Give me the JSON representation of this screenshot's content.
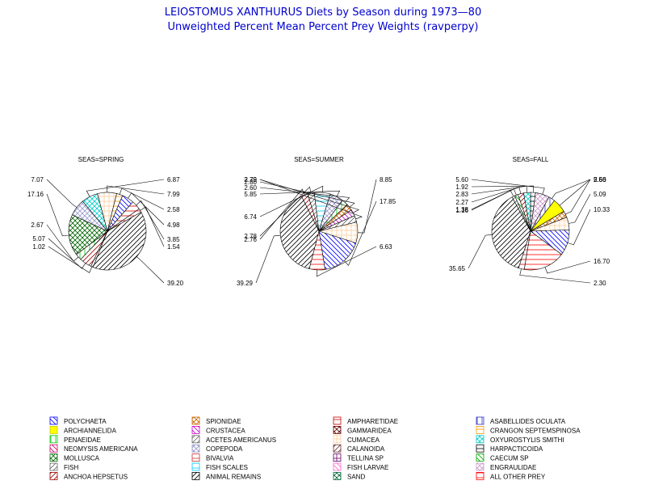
{
  "title": "LEIOSTOMUS XANTHURUS Diets by Season during 1973—80",
  "subtitle": "Unweighted Percent Mean Percent Prey  Weights (ravperpy)",
  "chart_data": [
    {
      "type": "pie",
      "title": "SEAS=SPRING",
      "slices": [
        {
          "category": "FISH",
          "value": 1.02
        },
        {
          "category": "ANCHOA HEPSETUS",
          "value": 5.07
        },
        {
          "category": "PENAEIDAE",
          "value": 2.67
        },
        {
          "category": "MOLLUSCA",
          "value": 17.16
        },
        {
          "category": "COPEPODA",
          "value": 7.07
        },
        {
          "category": "OXYUROSTYLIS SMITHI",
          "value": 6.87
        },
        {
          "category": "CUMACEA",
          "value": 7.99
        },
        {
          "category": "CRANGON SEPTEMSPINOSA",
          "value": 2.58
        },
        {
          "category": "POLYCHAETA",
          "value": 4.98
        },
        {
          "category": "AMPHARETIDAE",
          "value": 3.85
        },
        {
          "category": "ALL OTHER PREY",
          "value": 1.54
        },
        {
          "category": "ANIMAL REMAINS",
          "value": 39.2
        }
      ]
    },
    {
      "type": "pie",
      "title": "SEAS=SUMMER",
      "slices": [
        {
          "category": "ANIMAL REMAINS",
          "value": 39.29
        },
        {
          "category": "ANCHOA HEPSETUS",
          "value": 2.76
        },
        {
          "category": "FISH",
          "value": 2.78
        },
        {
          "category": "FISH SCALES",
          "value": 6.74
        },
        {
          "category": "COPEPODA",
          "value": 5.85
        },
        {
          "category": "PENAEIDAE",
          "value": 2.6
        },
        {
          "category": "SPIONIDAE",
          "value": 2.8
        },
        {
          "category": "CRUSTACEA",
          "value": 2.79
        },
        {
          "category": "ACETES AMERICANUS",
          "value": 2.79
        },
        {
          "category": "CUMACEA",
          "value": 8.85
        },
        {
          "category": "POLYCHAETA",
          "value": 17.85
        },
        {
          "category": "ALL OTHER PREY",
          "value": 6.63
        }
      ]
    },
    {
      "type": "pie",
      "title": "SEAS=FALL",
      "slices": [
        {
          "category": "ANIMAL REMAINS",
          "value": 35.65
        },
        {
          "category": "FISH",
          "value": 1.16
        },
        {
          "category": "CAECUM SP",
          "value": 1.38
        },
        {
          "category": "ANCHOA HEPSETUS",
          "value": 2.27
        },
        {
          "category": "OXYUROSTYLIS SMITHI",
          "value": 2.83
        },
        {
          "category": "HARPACTICOIDA",
          "value": 1.92
        },
        {
          "category": "ENGRAULIDAE",
          "value": 5.6
        },
        {
          "category": "ASABELLIDES OCULATA",
          "value": 2.56
        },
        {
          "category": "ARCHIANNELIDA",
          "value": 5.66
        },
        {
          "category": "SPIONIDAE",
          "value": 2.6
        },
        {
          "category": "CUMACEA",
          "value": 5.09
        },
        {
          "category": "POLYCHAETA",
          "value": 10.33
        },
        {
          "category": "ALL OTHER PREY",
          "value": 16.7
        },
        {
          "category": "AMPHARETIDAE",
          "value": 2.3
        }
      ]
    }
  ],
  "legend": [
    {
      "name": "POLYCHAETA",
      "color": "#0000ff",
      "pattern": "diag-rev"
    },
    {
      "name": "SPIONIDAE",
      "color": "#cc6600",
      "pattern": "cross-diag"
    },
    {
      "name": "AMPHARETIDAE",
      "color": "#cc0000",
      "pattern": "horiz"
    },
    {
      "name": "ASABELLIDES OCULATA",
      "color": "#3333cc",
      "pattern": "vert"
    },
    {
      "name": "ARCHIANNELIDA",
      "color": "#ffff00",
      "pattern": "solid"
    },
    {
      "name": "CRUSTACEA",
      "color": "#cc00cc",
      "pattern": "diag-rev"
    },
    {
      "name": "GAMMARIDEA",
      "color": "#660000",
      "pattern": "cross-diag"
    },
    {
      "name": "CRANGON SEPTEMSPINOSA",
      "color": "#ff9900",
      "pattern": "horiz"
    },
    {
      "name": "PENAEIDAE",
      "color": "#00cc00",
      "pattern": "vert"
    },
    {
      "name": "ACETES AMERICANUS",
      "color": "#666666",
      "pattern": "diag"
    },
    {
      "name": "CUMACEA",
      "color": "#ffcc99",
      "pattern": "grid"
    },
    {
      "name": "OXYUROSTYLIS SMITHI",
      "color": "#00cccc",
      "pattern": "cross-diag"
    },
    {
      "name": "NEOMYSIS AMERICANA",
      "color": "#cc0066",
      "pattern": "diag-rev"
    },
    {
      "name": "COPEPODA",
      "color": "#9999cc",
      "pattern": "cross-diag"
    },
    {
      "name": "CALANOIDA",
      "color": "#663333",
      "pattern": "diag"
    },
    {
      "name": "HARPACTICOIDA",
      "color": "#000000",
      "pattern": "horiz"
    },
    {
      "name": "MOLLUSCA",
      "color": "#006600",
      "pattern": "cross-diag"
    },
    {
      "name": "BIVALVIA",
      "color": "#cc3333",
      "pattern": "horiz"
    },
    {
      "name": "TELLINA SP",
      "color": "#660066",
      "pattern": "grid"
    },
    {
      "name": "CAECUM SP",
      "color": "#00aa00",
      "pattern": "diag-rev"
    },
    {
      "name": "FISH",
      "color": "#666666",
      "pattern": "diag"
    },
    {
      "name": "FISH SCALES",
      "color": "#00ccff",
      "pattern": "horiz"
    },
    {
      "name": "FISH LARVAE",
      "color": "#ff66cc",
      "pattern": "diag-rev"
    },
    {
      "name": "ENGRAULIDAE",
      "color": "#cc99cc",
      "pattern": "cross-diag"
    },
    {
      "name": "ANCHOA HEPSETUS",
      "color": "#990000",
      "pattern": "diag"
    },
    {
      "name": "ANIMAL REMAINS",
      "color": "#000000",
      "pattern": "diag"
    },
    {
      "name": "SAND",
      "color": "#006633",
      "pattern": "cross-diag"
    },
    {
      "name": "ALL OTHER PREY",
      "color": "#ff0000",
      "pattern": "horiz"
    }
  ]
}
